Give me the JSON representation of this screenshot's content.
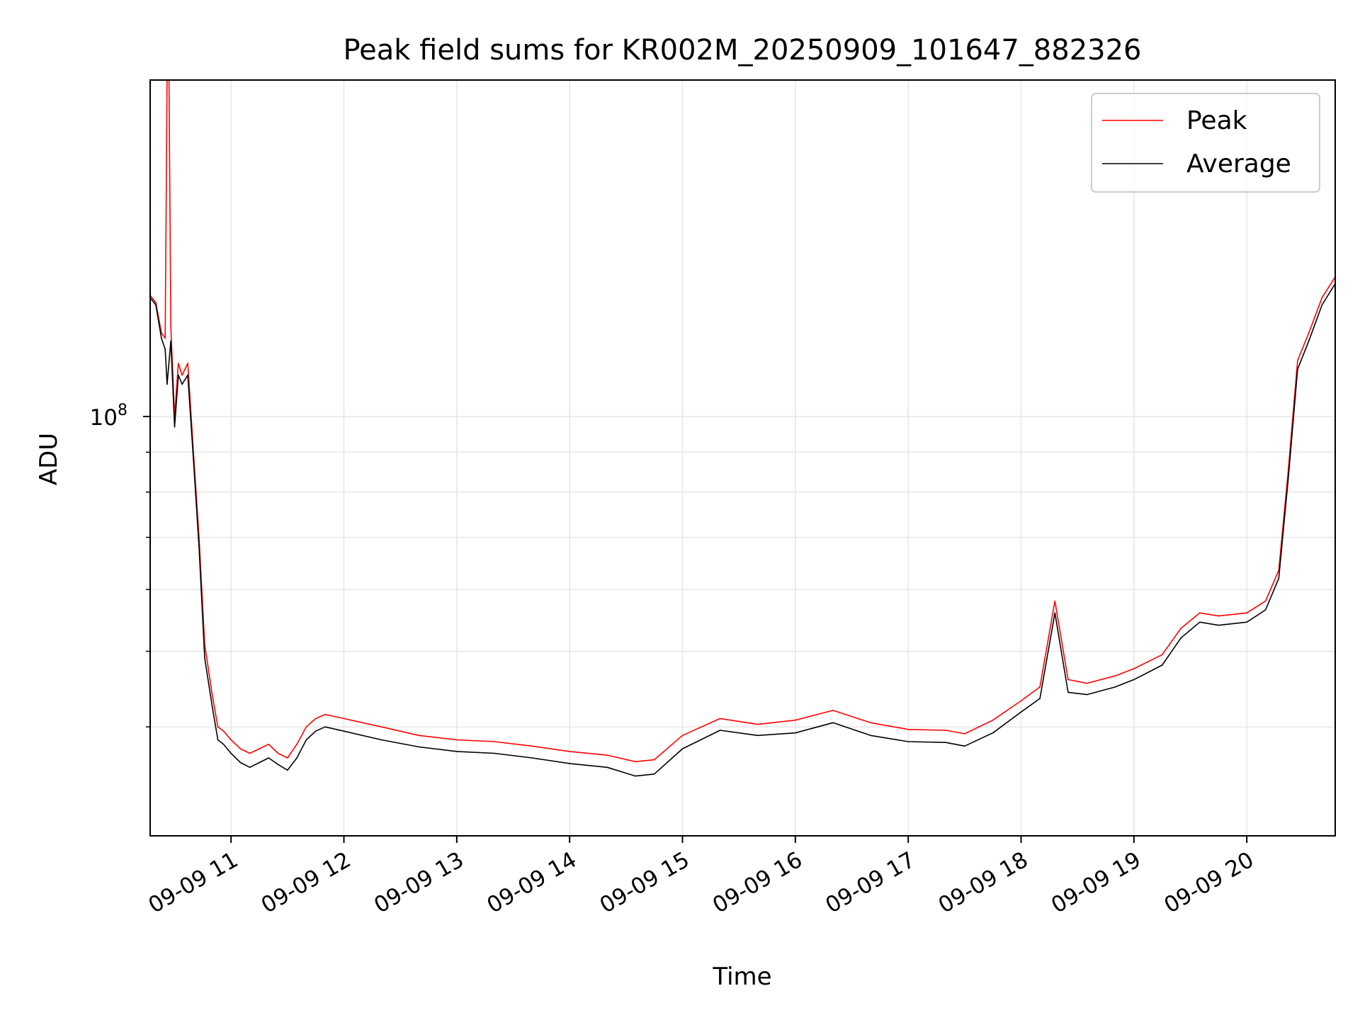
{
  "chart_data": {
    "type": "line",
    "title": "Peak field sums for KR002M_20250909_101647_882326",
    "xlabel": "Time",
    "ylabel": "ADU",
    "yscale": "log",
    "xlim": [
      "2025-09-09 10:17",
      "2025-09-09 20:47"
    ],
    "ylim": [
      29000000,
      270000000
    ],
    "x_ticks": [
      {
        "value": "2025-09-09 11:00",
        "label": "09-09 11"
      },
      {
        "value": "2025-09-09 12:00",
        "label": "09-09 12"
      },
      {
        "value": "2025-09-09 13:00",
        "label": "09-09 13"
      },
      {
        "value": "2025-09-09 14:00",
        "label": "09-09 14"
      },
      {
        "value": "2025-09-09 15:00",
        "label": "09-09 15"
      },
      {
        "value": "2025-09-09 16:00",
        "label": "09-09 16"
      },
      {
        "value": "2025-09-09 17:00",
        "label": "09-09 17"
      },
      {
        "value": "2025-09-09 18:00",
        "label": "09-09 18"
      },
      {
        "value": "2025-09-09 19:00",
        "label": "09-09 19"
      },
      {
        "value": "2025-09-09 20:00",
        "label": "09-09 20"
      }
    ],
    "y_major_ticks": [
      {
        "value": 100000000,
        "base": "10",
        "exp": "8"
      }
    ],
    "y_minor_ticks": [
      40000000,
      50000000,
      60000000,
      70000000,
      80000000,
      90000000
    ],
    "grid": true,
    "legend": {
      "placement": "upper right"
    },
    "series": [
      {
        "name": "Peak",
        "color": "#ff0000",
        "x": [
          "2025-09-09 10:17",
          "2025-09-09 10:20",
          "2025-09-09 10:23",
          "2025-09-09 10:25",
          "2025-09-09 10:26",
          "2025-09-09 10:27",
          "2025-09-09 10:28",
          "2025-09-09 10:30",
          "2025-09-09 10:32",
          "2025-09-09 10:34",
          "2025-09-09 10:37",
          "2025-09-09 10:40",
          "2025-09-09 10:43",
          "2025-09-09 10:46",
          "2025-09-09 10:50",
          "2025-09-09 10:53",
          "2025-09-09 10:56",
          "2025-09-09 11:00",
          "2025-09-09 11:05",
          "2025-09-09 11:10",
          "2025-09-09 11:15",
          "2025-09-09 11:20",
          "2025-09-09 11:25",
          "2025-09-09 11:30",
          "2025-09-09 11:35",
          "2025-09-09 11:40",
          "2025-09-09 11:45",
          "2025-09-09 11:50",
          "2025-09-09 12:00",
          "2025-09-09 12:20",
          "2025-09-09 12:40",
          "2025-09-09 13:00",
          "2025-09-09 13:20",
          "2025-09-09 13:40",
          "2025-09-09 14:00",
          "2025-09-09 14:20",
          "2025-09-09 14:35",
          "2025-09-09 14:45",
          "2025-09-09 15:00",
          "2025-09-09 15:20",
          "2025-09-09 15:40",
          "2025-09-09 16:00",
          "2025-09-09 16:20",
          "2025-09-09 16:40",
          "2025-09-09 17:00",
          "2025-09-09 17:20",
          "2025-09-09 17:30",
          "2025-09-09 17:45",
          "2025-09-09 18:00",
          "2025-09-09 18:10",
          "2025-09-09 18:18",
          "2025-09-09 18:25",
          "2025-09-09 18:35",
          "2025-09-09 18:50",
          "2025-09-09 19:00",
          "2025-09-09 19:15",
          "2025-09-09 19:25",
          "2025-09-09 19:35",
          "2025-09-09 19:45",
          "2025-09-09 20:00",
          "2025-09-09 20:10",
          "2025-09-09 20:17",
          "2025-09-09 20:22",
          "2025-09-09 20:27",
          "2025-09-09 20:33",
          "2025-09-09 20:40",
          "2025-09-09 20:47"
        ],
        "values": [
          143000000,
          140000000,
          128000000,
          126000000,
          270000000,
          270000000,
          130000000,
          100000000,
          117000000,
          113000000,
          117000000,
          90000000,
          70000000,
          51000000,
          44000000,
          40000000,
          39500000,
          38500000,
          37500000,
          37000000,
          37500000,
          38000000,
          37000000,
          36500000,
          38000000,
          40000000,
          41000000,
          41500000,
          41000000,
          40000000,
          39000000,
          38500000,
          38300000,
          37800000,
          37200000,
          36800000,
          36100000,
          36300000,
          39000000,
          41000000,
          40300000,
          40800000,
          42000000,
          40500000,
          39700000,
          39600000,
          39200000,
          40800000,
          43200000,
          45000000,
          58000000,
          46000000,
          45500000,
          46500000,
          47500000,
          49500000,
          53500000,
          56000000,
          55500000,
          56000000,
          58000000,
          63500000,
          85000000,
          118000000,
          128000000,
          142000000,
          151000000
        ]
      },
      {
        "name": "Average",
        "color": "#000000",
        "x": [
          "2025-09-09 10:17",
          "2025-09-09 10:20",
          "2025-09-09 10:23",
          "2025-09-09 10:25",
          "2025-09-09 10:26",
          "2025-09-09 10:28",
          "2025-09-09 10:30",
          "2025-09-09 10:32",
          "2025-09-09 10:34",
          "2025-09-09 10:37",
          "2025-09-09 10:40",
          "2025-09-09 10:43",
          "2025-09-09 10:46",
          "2025-09-09 10:50",
          "2025-09-09 10:53",
          "2025-09-09 10:56",
          "2025-09-09 11:00",
          "2025-09-09 11:05",
          "2025-09-09 11:10",
          "2025-09-09 11:15",
          "2025-09-09 11:20",
          "2025-09-09 11:25",
          "2025-09-09 11:30",
          "2025-09-09 11:35",
          "2025-09-09 11:40",
          "2025-09-09 11:45",
          "2025-09-09 11:50",
          "2025-09-09 12:00",
          "2025-09-09 12:20",
          "2025-09-09 12:40",
          "2025-09-09 13:00",
          "2025-09-09 13:20",
          "2025-09-09 13:40",
          "2025-09-09 14:00",
          "2025-09-09 14:20",
          "2025-09-09 14:35",
          "2025-09-09 14:45",
          "2025-09-09 15:00",
          "2025-09-09 15:20",
          "2025-09-09 15:40",
          "2025-09-09 16:00",
          "2025-09-09 16:20",
          "2025-09-09 16:40",
          "2025-09-09 17:00",
          "2025-09-09 17:20",
          "2025-09-09 17:30",
          "2025-09-09 17:45",
          "2025-09-09 18:00",
          "2025-09-09 18:10",
          "2025-09-09 18:18",
          "2025-09-09 18:25",
          "2025-09-09 18:35",
          "2025-09-09 18:50",
          "2025-09-09 19:00",
          "2025-09-09 19:15",
          "2025-09-09 19:25",
          "2025-09-09 19:35",
          "2025-09-09 19:45",
          "2025-09-09 20:00",
          "2025-09-09 20:10",
          "2025-09-09 20:17",
          "2025-09-09 20:22",
          "2025-09-09 20:27",
          "2025-09-09 20:33",
          "2025-09-09 20:40",
          "2025-09-09 20:47"
        ],
        "values": [
          142000000,
          139000000,
          126000000,
          122000000,
          110000000,
          125000000,
          97000000,
          113000000,
          110000000,
          113000000,
          88000000,
          68000000,
          49000000,
          42500000,
          38500000,
          38000000,
          37000000,
          36000000,
          35500000,
          36000000,
          36500000,
          35800000,
          35200000,
          36500000,
          38500000,
          39500000,
          40000000,
          39500000,
          38500000,
          37700000,
          37200000,
          37000000,
          36500000,
          35900000,
          35500000,
          34600000,
          34800000,
          37500000,
          39600000,
          39000000,
          39300000,
          40500000,
          39000000,
          38300000,
          38200000,
          37800000,
          39300000,
          41800000,
          43500000,
          56000000,
          44300000,
          44000000,
          45000000,
          46000000,
          48000000,
          52000000,
          54500000,
          54000000,
          54500000,
          56500000,
          62000000,
          83000000,
          115000000,
          125000000,
          139000000,
          148000000
        ]
      }
    ]
  }
}
